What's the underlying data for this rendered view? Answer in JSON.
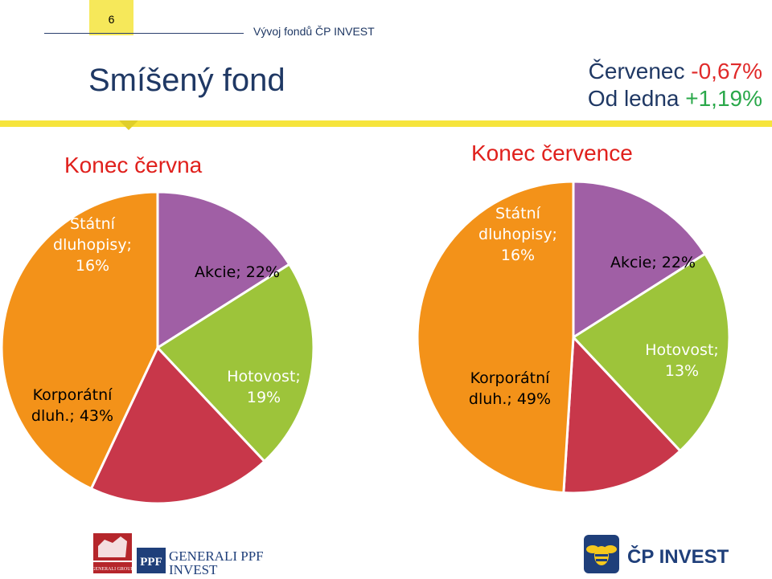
{
  "header": {
    "page_number": "6",
    "section": "Vývoj fondů ČP INVEST",
    "title": "Smíšený fond"
  },
  "performance": {
    "month_label": "Červenec",
    "month_value": "-0,67%",
    "ytd_label": "Od ledna",
    "ytd_value": "+1,19%"
  },
  "colors": {
    "bonds": "#a05fa5",
    "equities": "#9dc43a",
    "cash": "#c8374a",
    "corporate": "#f39219",
    "band": "#f6e43c",
    "title_red": "#e0201c",
    "navy": "#1f3864"
  },
  "chart_data": [
    {
      "type": "pie",
      "title": "Konec června",
      "labels": [
        "Státní dluhopisy",
        "Akcie",
        "Hotovost",
        "Korporátní dluh."
      ],
      "values": [
        16,
        22,
        19,
        43
      ],
      "data_labels": [
        "Státní dluhopisy; 16%",
        "Akcie; 22%",
        "Hotovost; 19%",
        "Korporátní dluh.; 43%"
      ]
    },
    {
      "type": "pie",
      "title": "Konec července",
      "labels": [
        "Státní dluhopisy",
        "Akcie",
        "Hotovost",
        "Korporátní dluh."
      ],
      "values": [
        16,
        22,
        13,
        49
      ],
      "data_labels": [
        "Státní dluhopisy; 16%",
        "Akcie; 22%",
        "Hotovost; 13%",
        "Korporátní dluh.; 49%"
      ]
    }
  ],
  "footer": {
    "generali_logo": "GENERALI GROUP",
    "ppf_logo": "PPF",
    "generali_ppf_line1": "GENERALI PPF",
    "generali_ppf_line2": "INVEST",
    "cp_invest_logo": "ČP INVEST"
  }
}
